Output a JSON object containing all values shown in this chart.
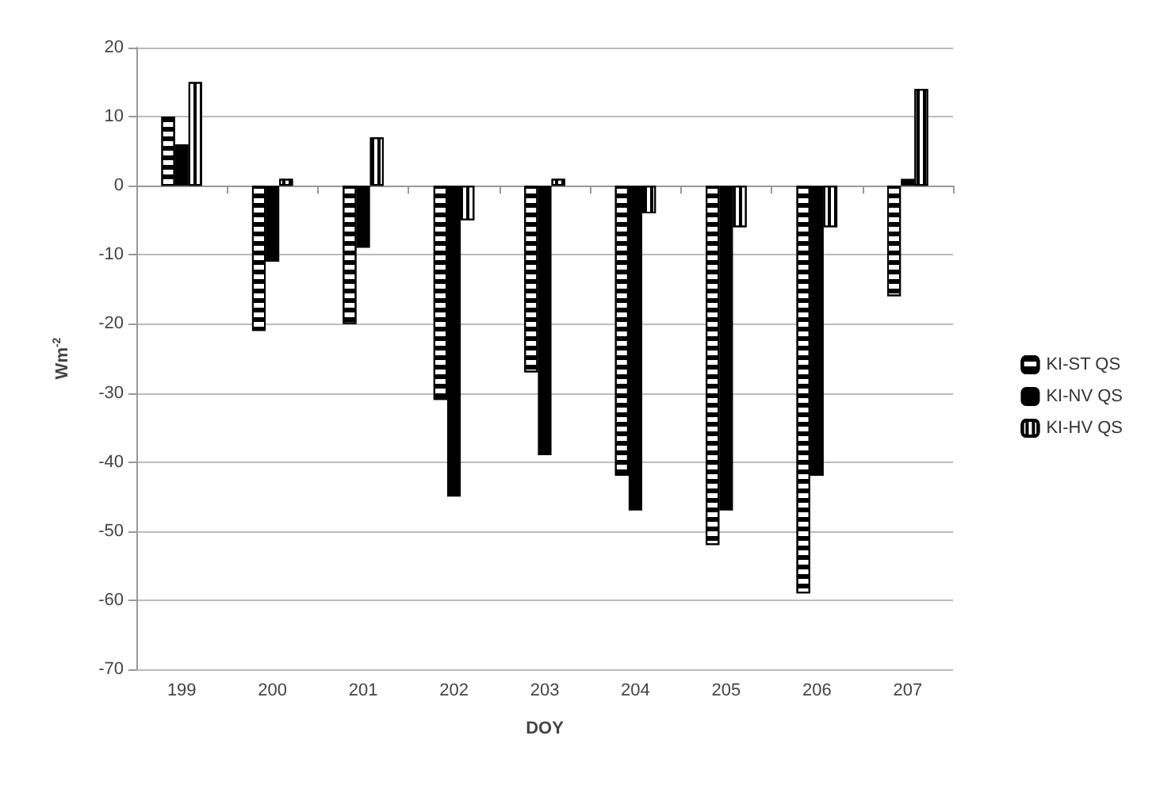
{
  "chart_data": {
    "type": "bar",
    "xlabel": "DOY",
    "ylabel": "Wm$^{-2}$",
    "categories": [
      "199",
      "200",
      "201",
      "202",
      "203",
      "204",
      "205",
      "206",
      "207"
    ],
    "series": [
      {
        "name": "KI-ST QS",
        "color": "#ffffff",
        "values": [
          10,
          -21,
          -20,
          -31,
          -27,
          -42,
          -52,
          -59,
          -16
        ]
      },
      {
        "name": "KI-NV QS",
        "color": "#000000",
        "values": [
          6,
          -11,
          -9,
          -45,
          -39,
          -47,
          -47,
          -42,
          1
        ]
      },
      {
        "name": "KI-HV QS",
        "color": "#ffffff",
        "values": [
          15,
          1,
          7,
          -5,
          1,
          -4,
          -6,
          -6,
          14
        ]
      }
    ],
    "ylim": [
      -70,
      20
    ],
    "yticks": [
      -70,
      -60,
      -50,
      -40,
      -30,
      -20,
      -10,
      0,
      10,
      20
    ],
    "grid": "y",
    "legend": "right"
  }
}
